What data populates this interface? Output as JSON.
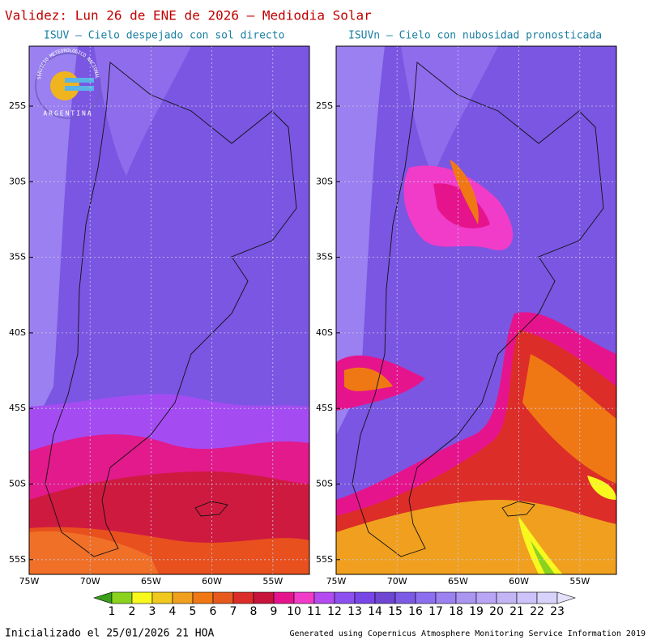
{
  "header": {
    "title": "Validez: Lun 26 de ENE de 2026 — Mediodia Solar"
  },
  "panels": [
    {
      "subtitle": "ISUV — Cielo despejado con sol directo"
    },
    {
      "subtitle": "ISUVn — Cielo con nubosidad pronosticada"
    }
  ],
  "lat_labels": [
    "25S",
    "30S",
    "35S",
    "40S",
    "45S",
    "50S",
    "55S"
  ],
  "lon_labels": [
    "75W",
    "70W",
    "65W",
    "60W",
    "55W"
  ],
  "logo": {
    "top": "SERVICIO METEOROLOGICO NACIONAL",
    "bottom": "ARGENTINA"
  },
  "colorbar": {
    "levels": [
      1,
      2,
      3,
      4,
      5,
      6,
      7,
      8,
      9,
      10,
      11,
      12,
      13,
      14,
      15,
      16,
      17,
      18,
      19,
      20,
      21,
      22,
      23
    ],
    "colors": [
      "#3aa01a",
      "#8ad21e",
      "#f8f81e",
      "#f0c81e",
      "#f0a01e",
      "#f07814",
      "#e65a1e",
      "#dc2d28",
      "#c8143c",
      "#e6148c",
      "#f03cc8",
      "#b44bf0",
      "#8c50f0",
      "#7846e6",
      "#6e46d2",
      "#7d5ae6",
      "#8c6ef0",
      "#9b82f0",
      "#aa96f0",
      "#b9a5f5",
      "#c3b4f5",
      "#cdc3fa",
      "#d7d2fa",
      "#e6e1fc"
    ]
  },
  "footer": {
    "left": "Inicializado el 25/01/2026 21 HOA",
    "right": "Generated using Copernicus Atmosphere Monitoring Service Information 2019"
  }
}
